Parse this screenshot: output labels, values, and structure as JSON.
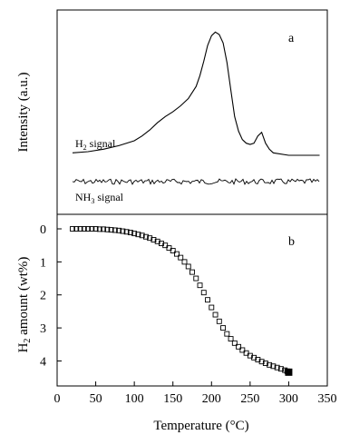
{
  "chart_data": [
    {
      "panel": "a",
      "type": "line",
      "panel_label": "a",
      "ylabel": "Intensity (a.u.)",
      "yticks": false,
      "xlim": [
        0,
        350
      ],
      "series": [
        {
          "name": "H2 signal",
          "label_text": "H",
          "label_sub": "2",
          "label_after": " signal",
          "x": [
            20,
            40,
            60,
            80,
            100,
            110,
            120,
            130,
            140,
            150,
            160,
            170,
            180,
            185,
            190,
            195,
            200,
            205,
            210,
            215,
            220,
            225,
            230,
            235,
            240,
            245,
            250,
            255,
            260,
            265,
            270,
            275,
            280,
            300,
            320,
            340
          ],
          "values": [
            0.02,
            0.03,
            0.05,
            0.08,
            0.12,
            0.16,
            0.21,
            0.27,
            0.32,
            0.36,
            0.41,
            0.47,
            0.57,
            0.66,
            0.78,
            0.91,
            0.99,
            1.02,
            1.0,
            0.93,
            0.77,
            0.54,
            0.32,
            0.2,
            0.13,
            0.1,
            0.09,
            0.1,
            0.16,
            0.19,
            0.1,
            0.05,
            0.02,
            0.0,
            0.0,
            0.0
          ]
        },
        {
          "name": "NH3 signal",
          "label_text": "NH",
          "label_sub": "3",
          "label_after": " signal",
          "x": [
            20,
            340
          ],
          "values": [
            0,
            0
          ],
          "noise": true
        }
      ]
    },
    {
      "panel": "b",
      "type": "scatter",
      "panel_label": "b",
      "ylabel_text": "H",
      "ylabel_sub": "2",
      "ylabel_after": " amount (wt%)",
      "xlabel": "Temperature (°C)",
      "xlim": [
        0,
        350
      ],
      "ylim": [
        0,
        4.5
      ],
      "y_inverted": true,
      "xticks": [
        0,
        50,
        100,
        150,
        200,
        250,
        300,
        350
      ],
      "yticks": [
        0,
        1,
        2,
        3,
        4
      ],
      "marker": "open-square",
      "x": [
        20,
        25,
        30,
        35,
        40,
        45,
        50,
        55,
        60,
        65,
        70,
        75,
        80,
        85,
        90,
        95,
        100,
        105,
        110,
        115,
        120,
        125,
        130,
        135,
        140,
        145,
        150,
        155,
        160,
        165,
        170,
        175,
        180,
        185,
        190,
        195,
        200,
        205,
        210,
        215,
        220,
        225,
        230,
        235,
        240,
        245,
        250,
        255,
        260,
        265,
        270,
        275,
        280,
        285,
        290,
        295,
        298,
        300
      ],
      "values": [
        0.0,
        0.0,
        0.0,
        0.0,
        0.0,
        0.0,
        0.0,
        0.01,
        0.01,
        0.02,
        0.03,
        0.04,
        0.05,
        0.07,
        0.09,
        0.11,
        0.14,
        0.17,
        0.2,
        0.24,
        0.28,
        0.33,
        0.38,
        0.44,
        0.5,
        0.58,
        0.66,
        0.76,
        0.87,
        1.0,
        1.14,
        1.31,
        1.5,
        1.71,
        1.93,
        2.15,
        2.38,
        2.6,
        2.8,
        3.0,
        3.18,
        3.33,
        3.46,
        3.57,
        3.67,
        3.76,
        3.84,
        3.9,
        3.96,
        4.02,
        4.07,
        4.12,
        4.16,
        4.2,
        4.24,
        4.28,
        4.31,
        4.34
      ]
    }
  ]
}
